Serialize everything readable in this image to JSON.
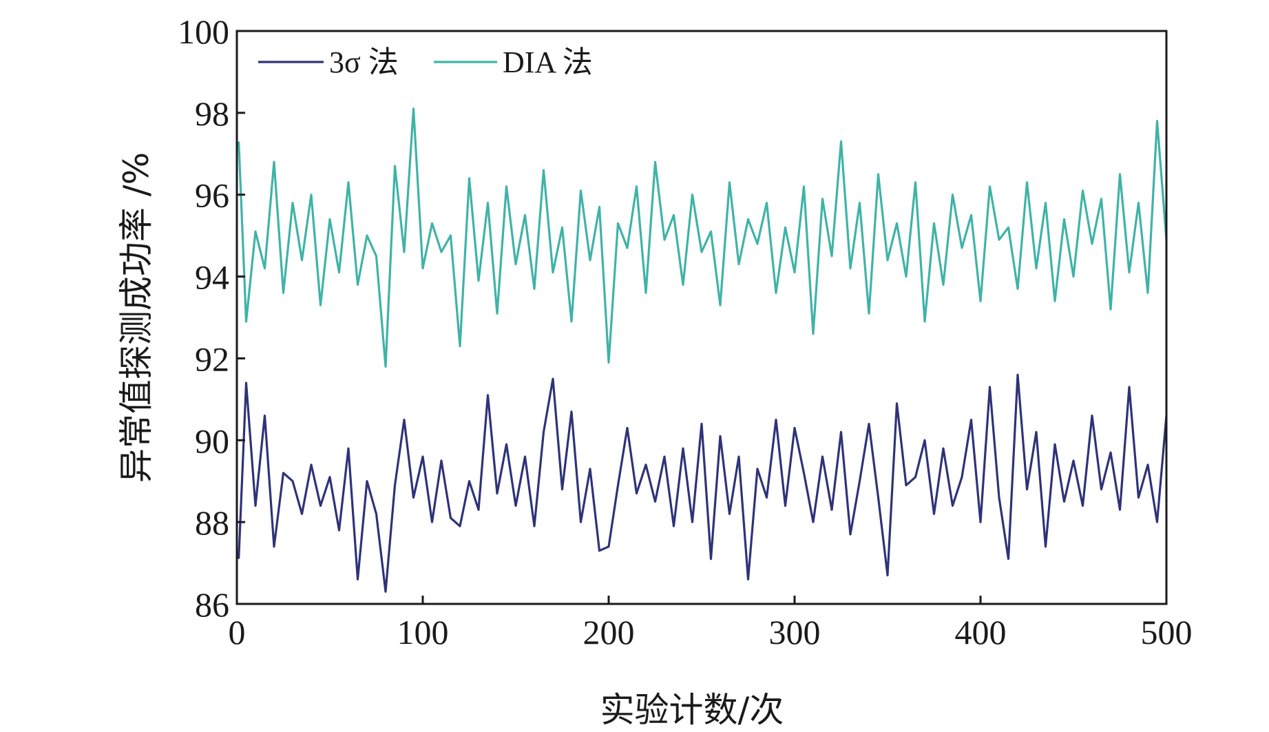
{
  "chart_data": {
    "type": "line",
    "title": "",
    "xlabel": "实验计数/次",
    "ylabel": "异常值探测成功率 /%",
    "xlim": [
      0,
      500
    ],
    "ylim": [
      86,
      100
    ],
    "xticks": [
      0,
      100,
      200,
      300,
      400,
      500
    ],
    "yticks": [
      86,
      88,
      90,
      92,
      94,
      96,
      98,
      100
    ],
    "x_tick_labels": [
      "0",
      "100",
      "200",
      "300",
      "400",
      "500"
    ],
    "y_tick_labels": [
      "86",
      "88",
      "90",
      "92",
      "94",
      "96",
      "98",
      "100"
    ],
    "grid": false,
    "legend_position": "top-left",
    "x": [
      1,
      5,
      10,
      15,
      20,
      25,
      30,
      35,
      40,
      45,
      50,
      55,
      60,
      65,
      70,
      75,
      80,
      85,
      90,
      95,
      100,
      105,
      110,
      115,
      120,
      125,
      130,
      135,
      140,
      145,
      150,
      155,
      160,
      165,
      170,
      175,
      180,
      185,
      190,
      195,
      200,
      205,
      210,
      215,
      220,
      225,
      230,
      235,
      240,
      245,
      250,
      255,
      260,
      265,
      270,
      275,
      280,
      285,
      290,
      295,
      300,
      305,
      310,
      315,
      320,
      325,
      330,
      335,
      340,
      345,
      350,
      355,
      360,
      365,
      370,
      375,
      380,
      385,
      390,
      395,
      400,
      405,
      410,
      415,
      420,
      425,
      430,
      435,
      440,
      445,
      450,
      455,
      460,
      465,
      470,
      475,
      480,
      485,
      490,
      495,
      500
    ],
    "series": [
      {
        "name": "3σ 法",
        "color": "#2e3378",
        "values": [
          87.1,
          91.4,
          88.4,
          90.6,
          87.4,
          89.2,
          89.0,
          88.2,
          89.4,
          88.4,
          89.1,
          87.8,
          89.8,
          86.6,
          89.0,
          88.2,
          86.3,
          88.9,
          90.5,
          88.6,
          89.6,
          88.0,
          89.5,
          88.1,
          87.9,
          89.0,
          88.3,
          91.1,
          88.7,
          89.9,
          88.4,
          89.6,
          87.9,
          90.2,
          91.5,
          88.8,
          90.7,
          88.0,
          89.3,
          87.3,
          87.4,
          88.9,
          90.3,
          88.7,
          89.4,
          88.5,
          89.6,
          87.9,
          89.8,
          88.0,
          90.4,
          87.1,
          90.1,
          88.2,
          89.6,
          86.6,
          89.3,
          88.6,
          90.5,
          88.4,
          90.3,
          89.2,
          88.0,
          89.6,
          88.3,
          90.2,
          87.7,
          89.0,
          90.4,
          88.6,
          86.7,
          90.9,
          88.9,
          89.1,
          90.0,
          88.2,
          89.8,
          88.4,
          89.1,
          90.5,
          88.0,
          91.3,
          88.6,
          87.1,
          91.6,
          88.8,
          90.2,
          87.4,
          89.9,
          88.5,
          89.5,
          88.4,
          90.6,
          88.8,
          89.7,
          88.3,
          91.3,
          88.6,
          89.4,
          88.0,
          90.6
        ]
      },
      {
        "name": "DIA 法",
        "color": "#3fb3a7",
        "values": [
          97.3,
          92.9,
          95.1,
          94.2,
          96.8,
          93.6,
          95.8,
          94.4,
          96.0,
          93.3,
          95.4,
          94.1,
          96.3,
          93.8,
          95.0,
          94.5,
          91.8,
          96.7,
          94.6,
          98.1,
          94.2,
          95.3,
          94.6,
          95.0,
          92.3,
          96.4,
          93.9,
          95.8,
          93.1,
          96.2,
          94.3,
          95.5,
          93.7,
          96.6,
          94.1,
          95.2,
          92.9,
          96.1,
          94.4,
          95.7,
          91.9,
          95.3,
          94.7,
          96.2,
          93.6,
          96.8,
          94.9,
          95.5,
          93.8,
          96.0,
          94.6,
          95.1,
          93.3,
          96.3,
          94.3,
          95.4,
          94.8,
          95.8,
          93.6,
          95.2,
          94.1,
          96.2,
          92.6,
          95.9,
          94.5,
          97.3,
          94.2,
          95.8,
          93.1,
          96.5,
          94.4,
          95.3,
          94.0,
          96.3,
          92.9,
          95.3,
          93.8,
          96.0,
          94.7,
          95.5,
          93.4,
          96.2,
          94.9,
          95.2,
          93.7,
          96.3,
          94.2,
          95.8,
          93.4,
          95.4,
          94.0,
          96.1,
          94.8,
          95.9,
          93.2,
          96.5,
          94.1,
          95.8,
          93.6,
          97.8,
          94.9
        ]
      }
    ]
  }
}
